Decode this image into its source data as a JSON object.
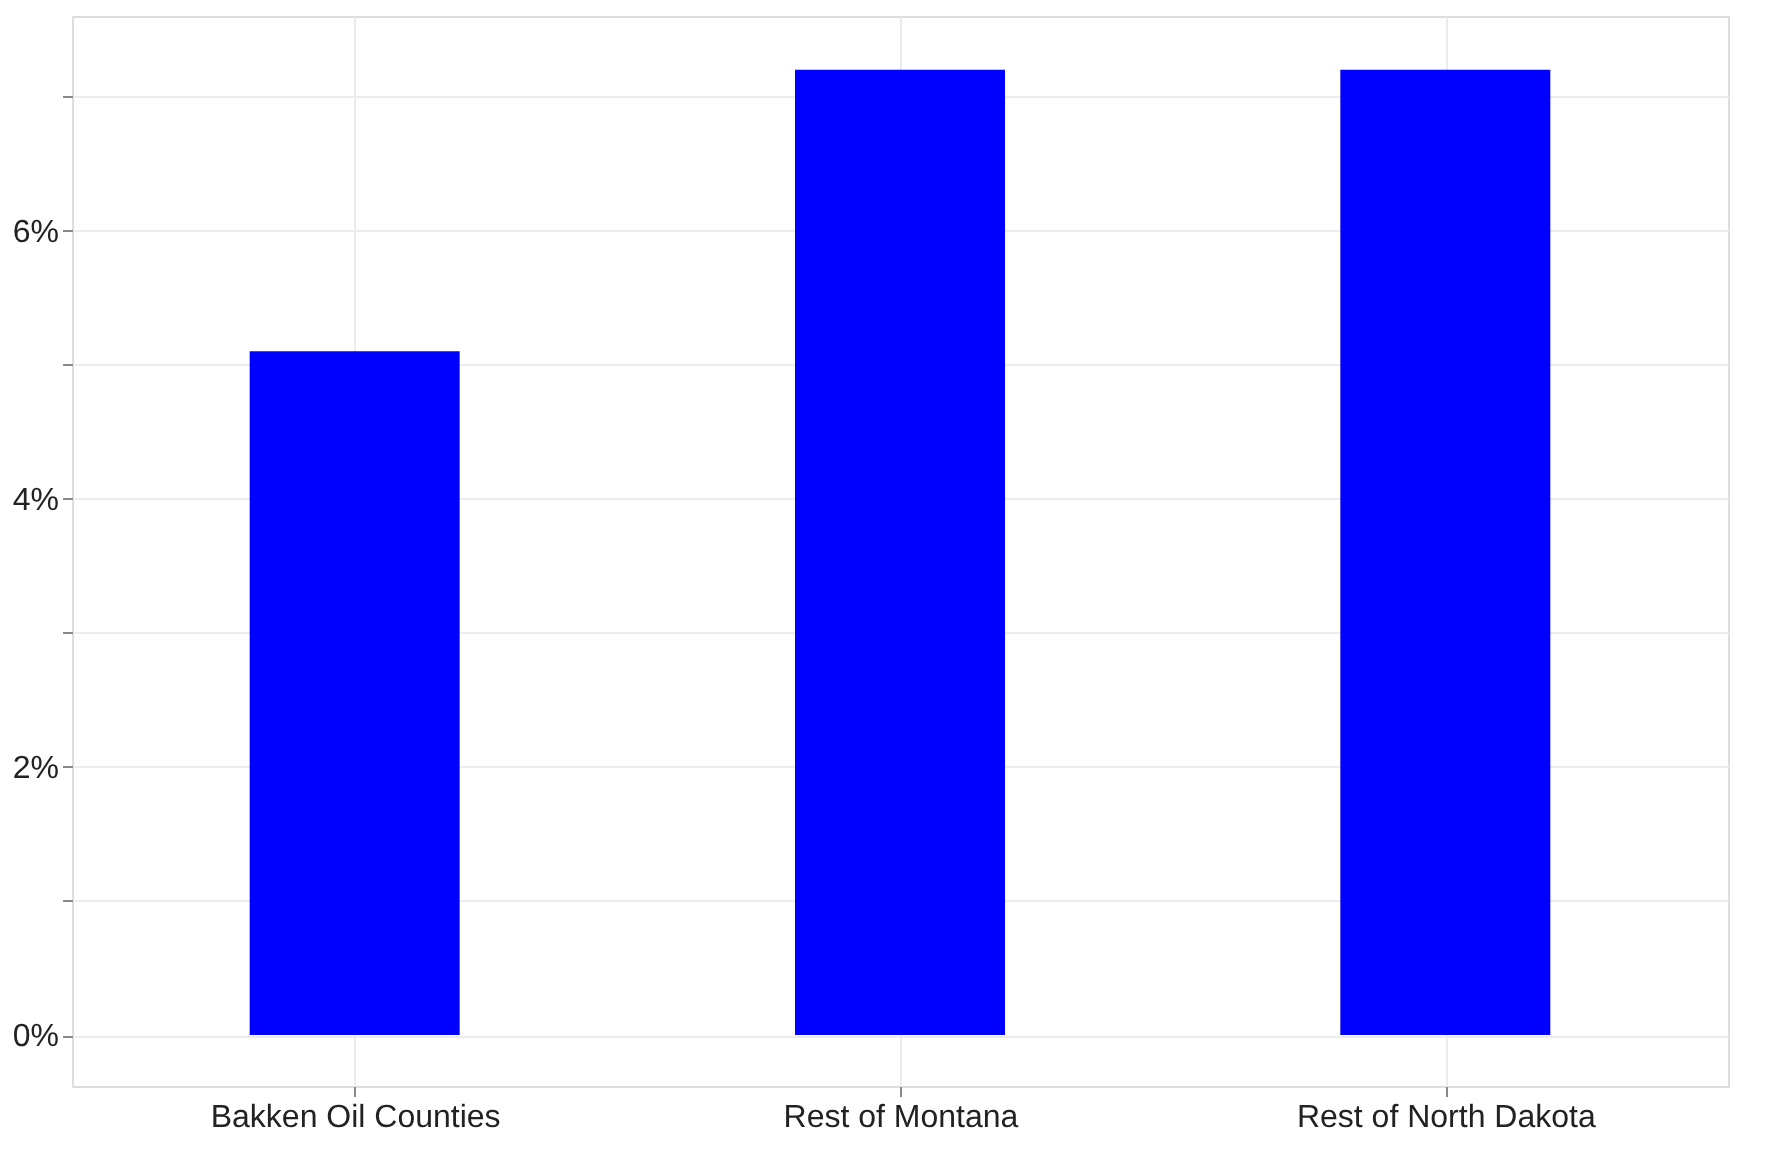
{
  "chart_data": {
    "type": "bar",
    "categories": [
      "Bakken Oil Counties",
      "Rest of Montana",
      "Rest of North Dakota"
    ],
    "values": [
      5.1,
      7.2,
      7.2
    ],
    "color": "#0000ff",
    "ylim": [
      -0.38,
      7.6
    ],
    "yticks": [
      {
        "value": 0,
        "label": "0%"
      },
      {
        "value": 1,
        "label": null
      },
      {
        "value": 2,
        "label": "2%"
      },
      {
        "value": 3,
        "label": null
      },
      {
        "value": 4,
        "label": "4%"
      },
      {
        "value": 5,
        "label": null
      },
      {
        "value": 6,
        "label": "6%"
      },
      {
        "value": 7,
        "label": null
      }
    ],
    "grid": true
  }
}
